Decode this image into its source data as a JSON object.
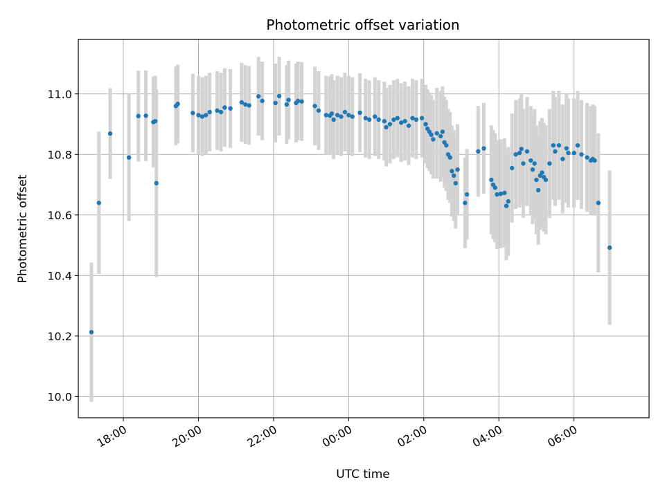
{
  "chart_data": {
    "type": "scatter",
    "title": "Photometric offset variation",
    "xlabel": "UTC time",
    "ylabel": "Photometric offset",
    "x_unit": "UTC time (hours, relative to 00:00; negative = previous day)",
    "xlim": [
      -7.2,
      8.0
    ],
    "ylim": [
      9.93,
      11.18
    ],
    "x_ticks": [
      -6,
      -4,
      -2,
      0,
      2,
      4,
      6
    ],
    "x_tick_labels": [
      "18:00",
      "20:00",
      "22:00",
      "00:00",
      "02:00",
      "04:00",
      "06:00"
    ],
    "y_ticks": [
      10.0,
      10.2,
      10.4,
      10.6,
      10.8,
      11.0
    ],
    "y_tick_labels": [
      "10.0",
      "10.2",
      "10.4",
      "10.6",
      "10.8",
      "11.0"
    ],
    "grid": true,
    "colors": {
      "marker": "#1f77b4",
      "errorbar": "#d3d3d3",
      "grid": "#b0b0b0"
    },
    "series": [
      {
        "points": [
          [
            -6.85,
            10.213,
            0.23
          ],
          [
            -6.65,
            10.64,
            0.235
          ],
          [
            -6.35,
            10.869,
            0.15
          ],
          [
            -5.85,
            10.79,
            0.21
          ],
          [
            -5.6,
            10.927,
            0.15
          ],
          [
            -5.4,
            10.928,
            0.15
          ],
          [
            -5.2,
            10.907,
            0.15
          ],
          [
            -5.15,
            10.91,
            0.15
          ],
          [
            -5.12,
            10.705,
            0.31
          ],
          [
            -4.6,
            10.96,
            0.13
          ],
          [
            -4.55,
            10.967,
            0.13
          ],
          [
            -4.15,
            10.937,
            0.13
          ],
          [
            -4.0,
            10.93,
            0.13
          ],
          [
            -3.9,
            10.925,
            0.13
          ],
          [
            -3.8,
            10.93,
            0.13
          ],
          [
            -3.7,
            10.94,
            0.13
          ],
          [
            -3.5,
            10.945,
            0.13
          ],
          [
            -3.4,
            10.94,
            0.13
          ],
          [
            -3.3,
            10.955,
            0.13
          ],
          [
            -3.15,
            10.952,
            0.13
          ],
          [
            -2.85,
            10.972,
            0.13
          ],
          [
            -2.75,
            10.965,
            0.13
          ],
          [
            -2.65,
            10.962,
            0.13
          ],
          [
            -2.4,
            10.992,
            0.13
          ],
          [
            -2.3,
            10.977,
            0.13
          ],
          [
            -1.95,
            10.97,
            0.13
          ],
          [
            -1.85,
            10.993,
            0.13
          ],
          [
            -1.65,
            10.965,
            0.13
          ],
          [
            -1.6,
            10.98,
            0.13
          ],
          [
            -1.4,
            10.97,
            0.13
          ],
          [
            -1.35,
            10.977,
            0.13
          ],
          [
            -1.25,
            10.975,
            0.13
          ],
          [
            -0.9,
            10.96,
            0.13
          ],
          [
            -0.8,
            10.945,
            0.13
          ],
          [
            -0.6,
            10.93,
            0.13
          ],
          [
            -0.5,
            10.928,
            0.13
          ],
          [
            -0.45,
            10.935,
            0.13
          ],
          [
            -0.4,
            10.915,
            0.13
          ],
          [
            -0.3,
            10.93,
            0.13
          ],
          [
            -0.2,
            10.925,
            0.13
          ],
          [
            -0.1,
            10.94,
            0.13
          ],
          [
            0.0,
            10.93,
            0.13
          ],
          [
            0.1,
            10.925,
            0.13
          ],
          [
            0.3,
            10.938,
            0.13
          ],
          [
            0.45,
            10.92,
            0.13
          ],
          [
            0.55,
            10.915,
            0.13
          ],
          [
            0.7,
            10.925,
            0.13
          ],
          [
            0.8,
            10.915,
            0.13
          ],
          [
            0.95,
            10.91,
            0.13
          ],
          [
            1.0,
            10.89,
            0.13
          ],
          [
            1.1,
            10.9,
            0.13
          ],
          [
            1.2,
            10.915,
            0.13
          ],
          [
            1.3,
            10.92,
            0.13
          ],
          [
            1.4,
            10.905,
            0.13
          ],
          [
            1.5,
            10.91,
            0.13
          ],
          [
            1.6,
            10.895,
            0.13
          ],
          [
            1.7,
            10.92,
            0.13
          ],
          [
            1.8,
            10.915,
            0.13
          ],
          [
            1.95,
            10.92,
            0.13
          ],
          [
            2.05,
            10.9,
            0.13
          ],
          [
            2.1,
            10.885,
            0.13
          ],
          [
            2.15,
            10.875,
            0.13
          ],
          [
            2.2,
            10.865,
            0.13
          ],
          [
            2.25,
            10.85,
            0.13
          ],
          [
            2.35,
            10.87,
            0.15
          ],
          [
            2.45,
            10.86,
            0.15
          ],
          [
            2.5,
            10.875,
            0.15
          ],
          [
            2.55,
            10.84,
            0.15
          ],
          [
            2.6,
            10.83,
            0.15
          ],
          [
            2.65,
            10.8,
            0.15
          ],
          [
            2.7,
            10.79,
            0.15
          ],
          [
            2.75,
            10.745,
            0.15
          ],
          [
            2.8,
            10.73,
            0.15
          ],
          [
            2.85,
            10.705,
            0.15
          ],
          [
            2.9,
            10.75,
            0.15
          ],
          [
            3.1,
            10.64,
            0.15
          ],
          [
            3.15,
            10.668,
            0.15
          ],
          [
            3.45,
            10.81,
            0.15
          ],
          [
            3.6,
            10.82,
            0.15
          ],
          [
            3.8,
            10.716,
            0.18
          ],
          [
            3.85,
            10.7,
            0.18
          ],
          [
            3.9,
            10.69,
            0.18
          ],
          [
            3.95,
            10.668,
            0.18
          ],
          [
            4.05,
            10.67,
            0.18
          ],
          [
            4.15,
            10.673,
            0.18
          ],
          [
            4.2,
            10.63,
            0.18
          ],
          [
            4.25,
            10.645,
            0.18
          ],
          [
            4.35,
            10.755,
            0.18
          ],
          [
            4.45,
            10.8,
            0.18
          ],
          [
            4.55,
            10.805,
            0.18
          ],
          [
            4.6,
            10.818,
            0.18
          ],
          [
            4.65,
            10.77,
            0.18
          ],
          [
            4.75,
            10.81,
            0.18
          ],
          [
            4.85,
            10.78,
            0.18
          ],
          [
            4.9,
            10.75,
            0.18
          ],
          [
            4.95,
            10.77,
            0.18
          ],
          [
            5.0,
            10.716,
            0.18
          ],
          [
            5.05,
            10.682,
            0.18
          ],
          [
            5.1,
            10.73,
            0.18
          ],
          [
            5.15,
            10.74,
            0.18
          ],
          [
            5.2,
            10.725,
            0.18
          ],
          [
            5.25,
            10.716,
            0.18
          ],
          [
            5.35,
            10.77,
            0.18
          ],
          [
            5.45,
            10.83,
            0.18
          ],
          [
            5.5,
            10.81,
            0.18
          ],
          [
            5.6,
            10.83,
            0.18
          ],
          [
            5.7,
            10.785,
            0.18
          ],
          [
            5.8,
            10.82,
            0.18
          ],
          [
            5.85,
            10.805,
            0.18
          ],
          [
            6.0,
            10.805,
            0.18
          ],
          [
            6.1,
            10.83,
            0.18
          ],
          [
            6.2,
            10.8,
            0.18
          ],
          [
            6.35,
            10.79,
            0.18
          ],
          [
            6.45,
            10.78,
            0.18
          ],
          [
            6.5,
            10.785,
            0.18
          ],
          [
            6.55,
            10.78,
            0.18
          ],
          [
            6.65,
            10.64,
            0.23
          ],
          [
            6.95,
            10.492,
            0.255
          ]
        ]
      }
    ]
  }
}
